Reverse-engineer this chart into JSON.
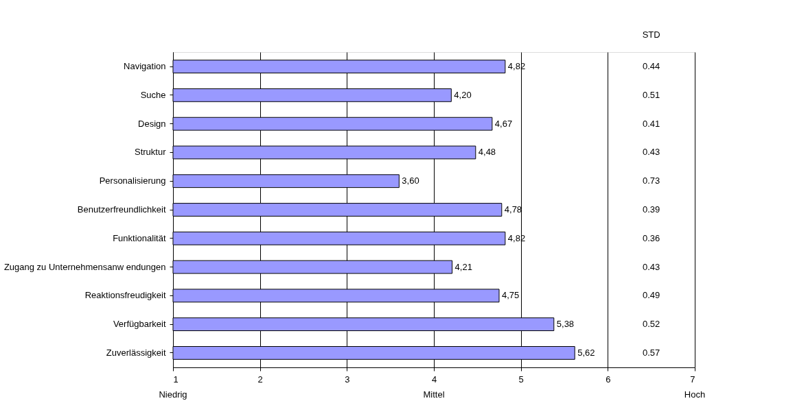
{
  "chart_data": {
    "type": "bar",
    "orientation": "horizontal",
    "categories": [
      "Navigation",
      "Suche",
      "Design",
      "Struktur",
      "Personalisierung",
      "Benutzerfreundlichkeit",
      "Funktionalität",
      "Zugang zu Unternehmensanw endungen",
      "Reaktionsfreudigkeit",
      "Verfügbarkeit",
      "Zuverlässigkeit"
    ],
    "values": [
      4.82,
      4.2,
      4.67,
      4.48,
      3.6,
      4.78,
      4.82,
      4.21,
      4.75,
      5.38,
      5.62
    ],
    "value_labels": [
      "4,82",
      "4,20",
      "4,67",
      "4,48",
      "3,60",
      "4,78",
      "4,82",
      "4,21",
      "4,75",
      "5,38",
      "5,62"
    ],
    "color": "#9999ff",
    "xlim": [
      1,
      7
    ],
    "xticks": [
      1,
      2,
      3,
      4,
      5,
      6,
      7
    ],
    "grid": "x",
    "annotations": [
      "STD",
      "0.44",
      "0.51",
      "0.41",
      "0.43",
      "0.73",
      "0.39",
      "0.36",
      "0.43",
      "0.49",
      "0.52",
      "0.57",
      "Niedrig",
      "Mittel",
      "Hoch"
    ]
  }
}
